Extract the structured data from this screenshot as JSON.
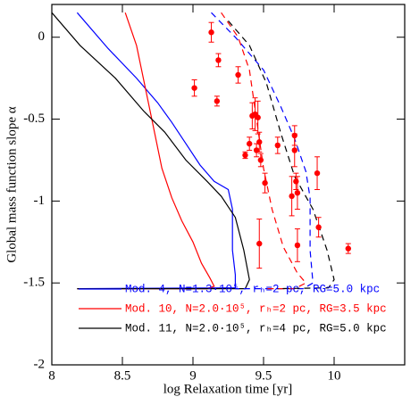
{
  "chart_data": {
    "type": "line",
    "xlabel": "log Relaxation time [yr]",
    "ylabel": "Global mass function slope α",
    "xlim": [
      8,
      10.5
    ],
    "ylim": [
      -2,
      0.2
    ],
    "xticks": [
      8,
      8.5,
      9,
      9.5,
      10
    ],
    "yticks": [
      -2,
      -1.5,
      -1,
      -0.5,
      0
    ],
    "series": [
      {
        "type": "line",
        "name": "Mod. 4, N=1.3·10⁵, rₕ=2 pc, RG=5.0 kpc",
        "color": "#0000ff",
        "dashed": false,
        "x": [
          8.18,
          8.4,
          8.6,
          8.75,
          8.85,
          8.95,
          9.05,
          9.15,
          9.25,
          9.28,
          9.28,
          9.3,
          9.3,
          8.18
        ],
        "values": [
          0.15,
          -0.07,
          -0.25,
          -0.4,
          -0.52,
          -0.65,
          -0.78,
          -0.88,
          -0.93,
          -1.05,
          -1.3,
          -1.45,
          -1.53,
          -1.535
        ]
      },
      {
        "type": "line",
        "name": "Mod. 10, N=2.0·10⁵, rₕ=2 pc, RG=3.5 kpc",
        "color": "#ff0000",
        "dashed": false,
        "x": [
          8.52,
          8.6,
          8.66,
          8.72,
          8.78,
          8.85,
          8.92,
          9.0,
          9.06,
          9.12,
          9.15,
          9.1,
          8.18
        ],
        "values": [
          0.15,
          -0.05,
          -0.3,
          -0.55,
          -0.8,
          -0.98,
          -1.12,
          -1.25,
          -1.38,
          -1.47,
          -1.52,
          -1.535,
          -1.535
        ]
      },
      {
        "type": "line",
        "name": "Mod. 11, N=2.0·10⁵, rₕ=4 pc, RG=5.0 kpc",
        "color": "#000000",
        "dashed": false,
        "x": [
          8.0,
          8.2,
          8.45,
          8.65,
          8.8,
          8.95,
          9.1,
          9.2,
          9.3,
          9.36,
          9.4,
          9.37,
          8.18
        ],
        "values": [
          0.15,
          -0.05,
          -0.25,
          -0.45,
          -0.58,
          -0.75,
          -0.88,
          -0.97,
          -1.1,
          -1.3,
          -1.48,
          -1.535,
          -1.535
        ]
      },
      {
        "type": "line",
        "color": "#0000ff",
        "dashed": true,
        "x": [
          9.13,
          9.3,
          9.5,
          9.62,
          9.72,
          9.8,
          9.83,
          9.83,
          9.85,
          9.78,
          9.3
        ],
        "values": [
          0.15,
          0.0,
          -0.2,
          -0.42,
          -0.62,
          -0.82,
          -0.98,
          -1.3,
          -1.5,
          -1.535,
          -1.535
        ]
      },
      {
        "type": "line",
        "color": "#ff0000",
        "dashed": true,
        "x": [
          9.2,
          9.32,
          9.4,
          9.45,
          9.5,
          9.56,
          9.64,
          9.74,
          9.8,
          9.72,
          9.5
        ],
        "values": [
          0.15,
          0.0,
          -0.2,
          -0.5,
          -0.8,
          -1.05,
          -1.28,
          -1.44,
          -1.5,
          -1.535,
          -1.535
        ]
      },
      {
        "type": "line",
        "color": "#000000",
        "dashed": true,
        "x": [
          9.25,
          9.4,
          9.52,
          9.62,
          9.72,
          9.85,
          9.95,
          10.0,
          9.96,
          9.6
        ],
        "values": [
          0.1,
          -0.05,
          -0.28,
          -0.58,
          -0.85,
          -1.05,
          -1.3,
          -1.48,
          -1.53,
          -1.535
        ]
      },
      {
        "type": "scatter",
        "color": "#ff0000",
        "x": [
          9.13,
          9.18,
          9.01,
          9.17,
          9.32,
          9.37,
          9.4,
          9.42,
          9.44,
          9.45,
          9.46,
          9.47,
          9.48,
          9.51,
          9.47,
          9.6,
          9.7,
          9.72,
          9.72,
          9.73,
          9.74,
          9.74,
          9.88,
          9.89,
          10.1
        ],
        "values": [
          0.03,
          -0.14,
          -0.31,
          -0.39,
          -0.23,
          -0.72,
          -0.65,
          -0.48,
          -0.47,
          -0.69,
          -0.49,
          -0.64,
          -0.75,
          -0.89,
          -1.26,
          -0.66,
          -0.97,
          -0.6,
          -0.69,
          -0.88,
          -0.95,
          -1.27,
          -0.83,
          -1.16,
          -1.29
        ],
        "errors": [
          0.06,
          0.04,
          0.05,
          0.03,
          0.05,
          0.02,
          0.04,
          0.08,
          0.1,
          0.04,
          0.1,
          0.06,
          0.04,
          0.06,
          0.15,
          0.05,
          0.12,
          0.06,
          0.1,
          0.05,
          0.1,
          0.1,
          0.1,
          0.06,
          0.03
        ]
      }
    ]
  }
}
